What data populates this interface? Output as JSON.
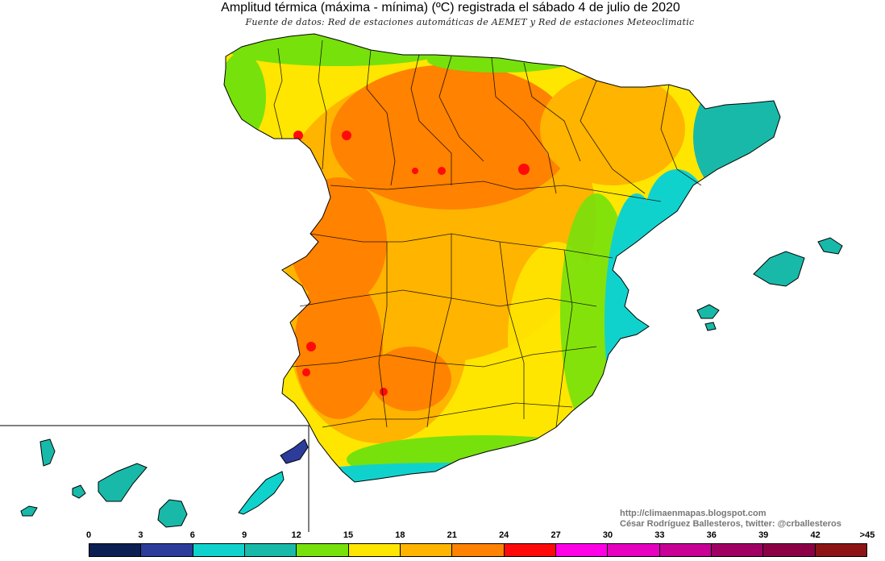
{
  "title": "Amplitud térmica (máxima - mínima) (ºC) registrada el sábado 4 de julio de 2020",
  "subtitle": "Fuente de datos: Red de estaciones automáticas de AEMET y Red de estaciones Meteoclimatic",
  "credits": {
    "blog": "http://climaenmapas.blogspot.com",
    "author": "César Rodríguez Ballesteros, twitter: @crballesteros"
  },
  "legend": {
    "tick_labels": [
      "0",
      "3",
      "6",
      "9",
      "12",
      "15",
      "18",
      "21",
      "24",
      "27",
      "30",
      "33",
      "36",
      "39",
      "42",
      ">45"
    ],
    "colors": [
      "#0c1f52",
      "#2b3c9b",
      "#10d2cd",
      "#19b9a9",
      "#77e10c",
      "#ffe600",
      "#ffb400",
      "#ff8200",
      "#ff0a0a",
      "#ff00e6",
      "#e600c0",
      "#c80096",
      "#a00064",
      "#8c0046",
      "#8c1414"
    ]
  }
}
